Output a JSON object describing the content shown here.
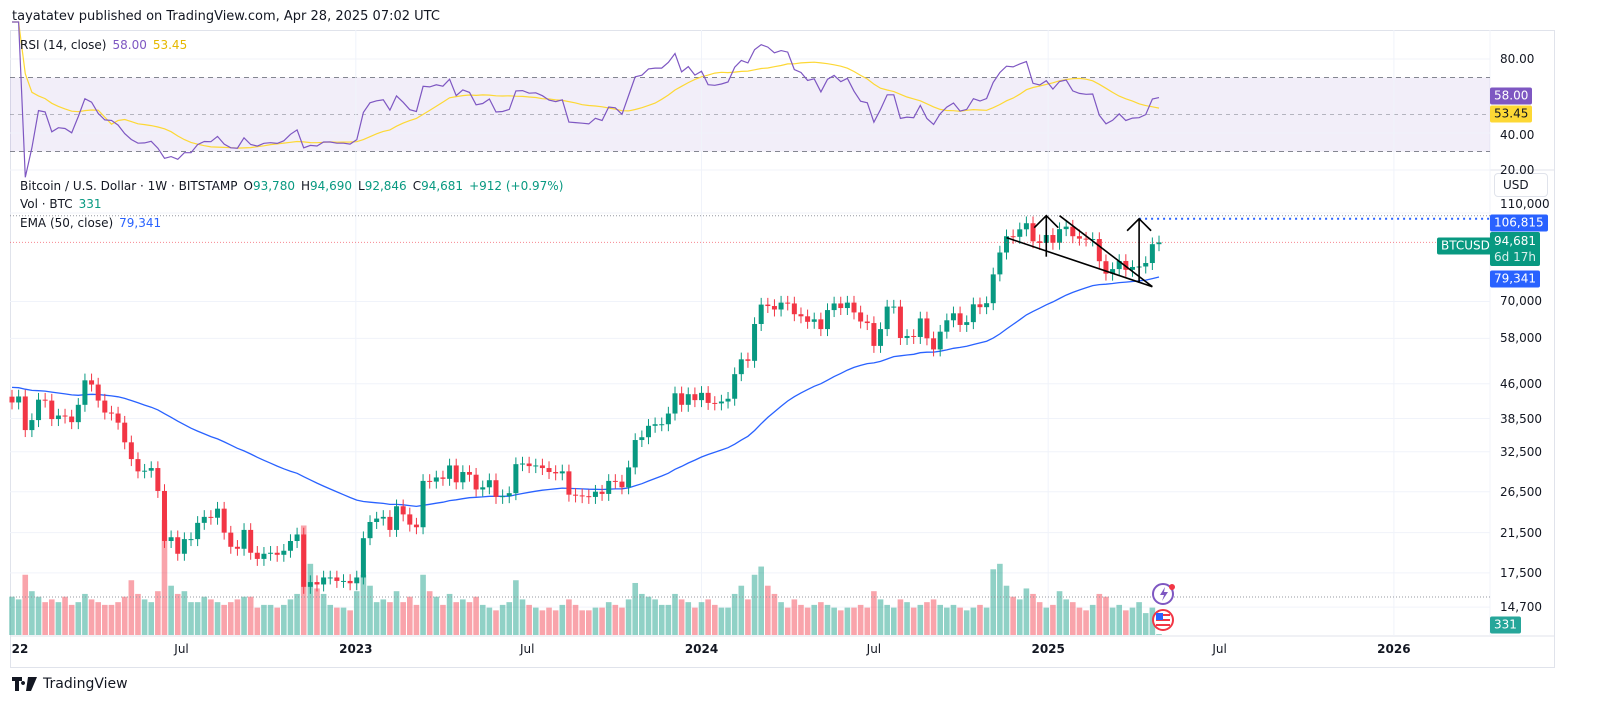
{
  "header": {
    "published": "tayatatev published on TradingView.com, Apr 28, 2025 07:02 UTC"
  },
  "rsi_legend": {
    "label": "RSI (14, close)",
    "rsi": "58.00",
    "rsi_ma": "53.45"
  },
  "main_legend": {
    "symbol": "Bitcoin / U.S. Dollar · 1W · BITSTAMP",
    "o_label": "O",
    "o": "93,780",
    "h_label": "H",
    "h": "94,690",
    "l_label": "L",
    "l": "92,846",
    "c_label": "C",
    "c": "94,681",
    "change": "+912 (+0.97%)",
    "vol_label": "Vol · BTC",
    "vol": "331",
    "ema_label": "EMA (50, close)",
    "ema": "79,341"
  },
  "price_axis": {
    "currency": "USD",
    "ticks": [
      "110,000",
      "70,000",
      "58,000",
      "46,000",
      "38,500",
      "32,500",
      "26,500",
      "21,500",
      "17,500",
      "14,700"
    ],
    "tick_values": [
      110000,
      70000,
      58000,
      46000,
      38500,
      32500,
      26500,
      21500,
      17500,
      14700
    ],
    "scale": "log"
  },
  "rsi_axis": {
    "ticks": [
      "80.00",
      "40.00",
      "20.00"
    ],
    "tick_values": [
      80,
      40,
      20
    ],
    "band": [
      30,
      70
    ],
    "mid": 50
  },
  "tags": {
    "target": "106,815",
    "target_value": 106815,
    "symbol": "BTCUSD",
    "price": "94,681",
    "price_value": 94681,
    "countdown": "6d 17h",
    "ema": "79,341",
    "ema_value": 79341,
    "rsi": "58.00",
    "rsi_ma": "53.45",
    "volume": "331"
  },
  "date_axis": [
    {
      "label": "22",
      "date": "2022-01-03",
      "bold": true
    },
    {
      "label": "Jul",
      "date": "2022-07-01"
    },
    {
      "label": "2023",
      "date": "2023-01-01",
      "bold": true
    },
    {
      "label": "Jul",
      "date": "2023-07-01"
    },
    {
      "label": "2024",
      "date": "2024-01-01",
      "bold": true
    },
    {
      "label": "Jul",
      "date": "2024-07-01"
    },
    {
      "label": "2025",
      "date": "2025-01-01",
      "bold": true
    },
    {
      "label": "Jul",
      "date": "2025-07-01"
    },
    {
      "label": "2026",
      "date": "2026-01-01",
      "bold": true
    }
  ],
  "colors": {
    "up": "#089981",
    "down": "#f23645",
    "ema": "#2962ff",
    "rsi": "#7e57c2",
    "rsi_ma": "#fdd835",
    "target": "#2962ff"
  },
  "footer": {
    "brand": "TradingView"
  },
  "chart_data": {
    "type": "candlestick",
    "interval": "1W",
    "start_week": "2022-01-03",
    "closes": [
      41.8,
      43.1,
      36.3,
      38.2,
      42.4,
      42.2,
      38.4,
      39.1,
      38.9,
      37.8,
      41.3,
      46.8,
      45.8,
      42.2,
      39.7,
      39.5,
      37.7,
      34.1,
      31.3,
      29.4,
      29.5,
      29.9,
      26.6,
      20.6,
      21.0,
      19.3,
      20.8,
      20.8,
      22.6,
      23.3,
      23.2,
      24.3,
      21.5,
      20.0,
      19.8,
      21.8,
      19.4,
      18.8,
      19.3,
      19.4,
      19.2,
      19.6,
      20.6,
      21.3,
      16.3,
      16.7,
      16.5,
      17.1,
      17.1,
      16.8,
      16.8,
      16.6,
      17.1,
      20.9,
      22.7,
      23.1,
      23.3,
      21.8,
      24.6,
      23.6,
      22.4,
      22.1,
      28.0,
      27.9,
      28.5,
      28.3,
      30.3,
      27.8,
      29.3,
      28.9,
      26.8,
      27.1,
      28.1,
      25.8,
      25.9,
      26.3,
      30.5,
      30.6,
      30.2,
      30.3,
      29.9,
      29.3,
      29.1,
      29.4,
      26.1,
      26.0,
      25.9,
      25.8,
      26.5,
      26.2,
      28.0,
      27.9,
      27.1,
      30.0,
      34.5,
      35.0,
      37.1,
      37.4,
      37.4,
      39.5,
      43.8,
      41.3,
      43.6,
      42.3,
      43.9,
      41.7,
      41.6,
      42.0,
      42.6,
      48.3,
      52.1,
      51.7,
      62.4,
      68.9,
      68.4,
      67.2,
      69.6,
      69.3,
      65.6,
      64.9,
      63.1,
      63.9,
      60.8,
      67.0,
      69.3,
      67.7,
      69.6,
      66.2,
      63.2,
      62.7,
      55.8,
      60.8,
      68.2,
      68.2,
      58.1,
      58.7,
      58.4,
      64.2,
      58.0,
      54.8,
      60.0,
      63.6,
      65.9,
      62.1,
      63.0,
      69.0,
      68.0,
      69.4,
      80.4,
      89.9,
      97.7,
      97.4,
      101.2,
      104.4,
      95.2,
      94.4,
      98.3,
      94.5,
      101.3,
      102.6,
      97.7,
      96.5,
      96.1,
      96.3,
      86.0,
      80.7,
      82.6,
      86.1,
      82.3,
      83.5,
      83.7,
      85.2,
      93.8,
      94.681
    ],
    "close_unit": "thousand USD",
    "volumes": [
      14,
      13,
      22,
      16,
      14,
      12,
      13,
      12,
      14,
      11,
      12,
      15,
      13,
      12,
      11,
      11,
      12,
      14,
      20,
      15,
      13,
      12,
      16,
      42,
      18,
      15,
      16,
      12,
      12,
      14,
      13,
      12,
      11,
      12,
      13,
      14,
      14,
      10,
      11,
      11,
      10,
      11,
      13,
      15,
      40,
      26,
      17,
      15,
      11,
      10,
      10,
      9,
      16,
      22,
      18,
      12,
      13,
      12,
      16,
      12,
      14,
      11,
      22,
      16,
      14,
      11,
      15,
      12,
      13,
      12,
      14,
      11,
      10,
      9,
      11,
      12,
      20,
      13,
      11,
      10,
      9,
      10,
      9,
      11,
      13,
      11,
      9,
      9,
      10,
      10,
      12,
      11,
      10,
      13,
      19,
      15,
      14,
      13,
      11,
      11,
      15,
      13,
      12,
      10,
      12,
      13,
      11,
      10,
      10,
      15,
      18,
      13,
      22,
      25,
      18,
      15,
      12,
      10,
      13,
      11,
      10,
      11,
      12,
      11,
      10,
      9,
      10,
      10,
      11,
      10,
      16,
      13,
      11,
      10,
      13,
      12,
      10,
      11,
      12,
      13,
      11,
      10,
      11,
      10,
      9,
      10,
      11,
      10,
      24,
      26,
      18,
      14,
      13,
      17,
      15,
      12,
      10,
      11,
      16,
      13,
      12,
      10,
      9,
      11,
      15,
      14,
      10,
      11,
      9,
      10,
      12,
      8,
      10,
      0.331
    ],
    "volume_unit": "thousand BTC",
    "indicators": {
      "ema_period": 50,
      "rsi_period": 14,
      "rsi_ma_period": 14
    },
    "drawings": [
      {
        "type": "trendline",
        "from": {
          "date": "2024-11-18",
          "price": 97000
        },
        "to": {
          "date": "2025-04-21",
          "price": 75500
        }
      },
      {
        "type": "trendline",
        "from": {
          "date": "2025-01-13",
          "price": 108500
        },
        "to": {
          "date": "2025-04-21",
          "price": 75500
        }
      },
      {
        "type": "arrow-up",
        "date": "2024-12-30",
        "from": 88000,
        "to": 108500
      },
      {
        "type": "arrow-up",
        "date": "2025-04-07",
        "from": 77000,
        "to": 106815
      }
    ]
  }
}
